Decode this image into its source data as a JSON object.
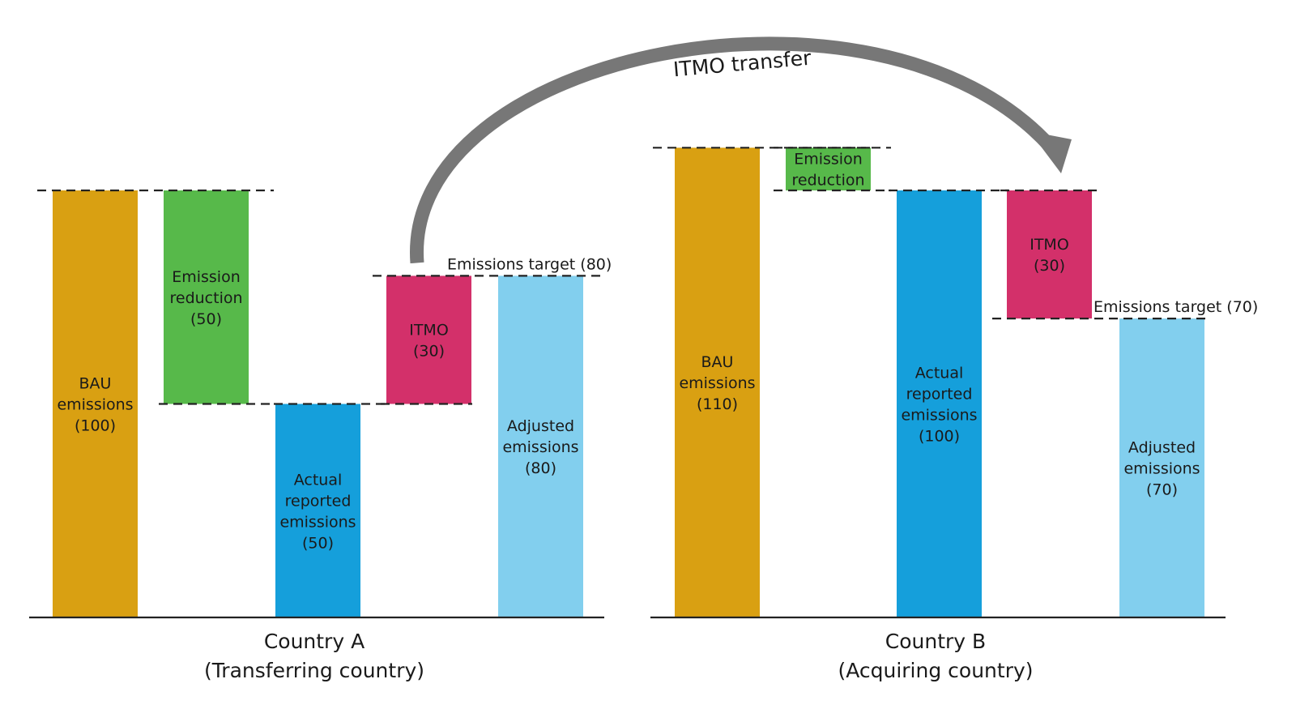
{
  "chart_data": [
    {
      "type": "bar",
      "title": [
        "Country A",
        "(Transferring country)"
      ],
      "ylim": [
        0,
        110
      ],
      "bars": [
        {
          "id": "bau",
          "label": [
            "BAU",
            "emissions",
            "(100)"
          ],
          "bottom": 0,
          "top": 100,
          "color": "#d9a012"
        },
        {
          "id": "reduction",
          "label": [
            "Emission",
            "reduction",
            "(50)"
          ],
          "bottom": 50,
          "top": 100,
          "color": "#57b94a"
        },
        {
          "id": "actual",
          "label": [
            "Actual",
            "reported",
            "emissions",
            "(50)"
          ],
          "bottom": 0,
          "top": 50,
          "color": "#159fdb"
        },
        {
          "id": "itmo",
          "label": [
            "ITMO",
            "(30)"
          ],
          "bottom": 50,
          "top": 80,
          "color": "#d3306a"
        },
        {
          "id": "adjusted",
          "label": [
            "Adjusted",
            "emissions",
            "(80)"
          ],
          "bottom": 0,
          "top": 80,
          "color": "#82cfee"
        }
      ],
      "target": {
        "label": "Emissions target (80)",
        "value": 80
      }
    },
    {
      "type": "bar",
      "title": [
        "Country B",
        "(Acquiring country)"
      ],
      "ylim": [
        0,
        110
      ],
      "bars": [
        {
          "id": "bau",
          "label": [
            "BAU",
            "emissions",
            "(110)"
          ],
          "bottom": 0,
          "top": 110,
          "color": "#d9a012"
        },
        {
          "id": "reduction",
          "label": [
            "Emission",
            "reduction"
          ],
          "bottom": 100,
          "top": 110,
          "color": "#57b94a"
        },
        {
          "id": "actual",
          "label": [
            "Actual",
            "reported",
            "emissions",
            "(100)"
          ],
          "bottom": 0,
          "top": 100,
          "color": "#159fdb"
        },
        {
          "id": "itmo",
          "label": [
            "ITMO",
            "(30)"
          ],
          "bottom": 70,
          "top": 100,
          "color": "#d3306a"
        },
        {
          "id": "adjusted",
          "label": [
            "Adjusted",
            "emissions",
            "(70)"
          ],
          "bottom": 0,
          "top": 70,
          "color": "#82cfee"
        }
      ],
      "target": {
        "label": "Emissions target (70)",
        "value": 70
      }
    }
  ],
  "transfer": {
    "label": "ITMO transfer",
    "color": "#777777"
  }
}
